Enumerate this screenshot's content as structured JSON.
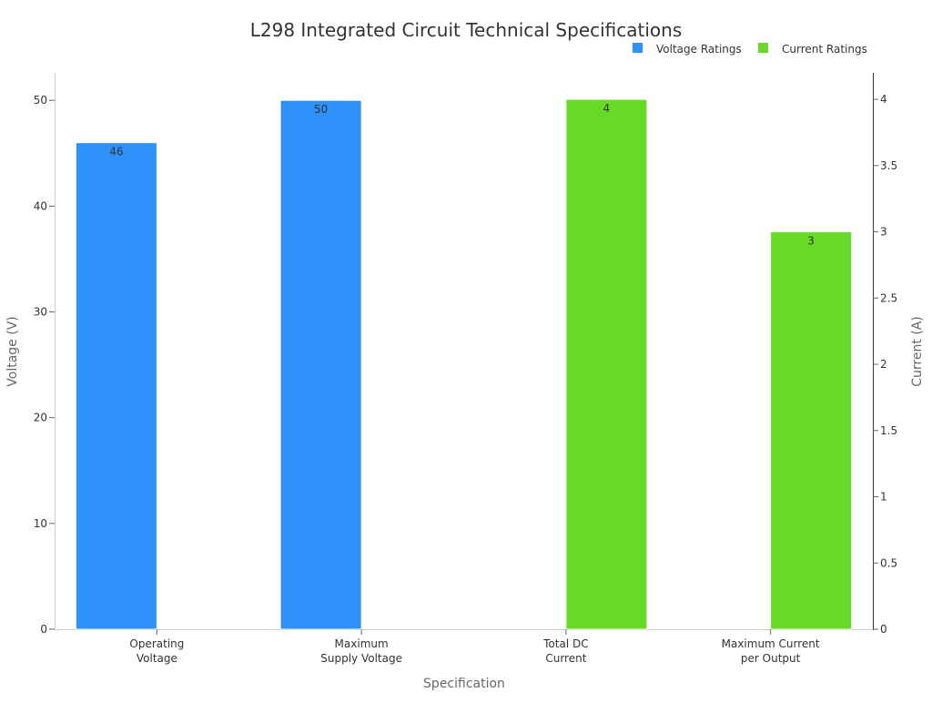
{
  "chart_data": {
    "type": "bar",
    "title": "L298 Integrated Circuit Technical Specifications",
    "xlabel": "Specification",
    "ylabel_left": "Voltage (V)",
    "ylabel_right": "Current (A)",
    "categories": [
      [
        "Operating",
        "Voltage"
      ],
      [
        "Maximum",
        "Supply Voltage"
      ],
      [
        "Total DC",
        "Current"
      ],
      [
        "Maximum Current",
        "per Output"
      ]
    ],
    "series": [
      {
        "name": "Voltage Ratings",
        "axis": "left",
        "color": "#2e91f9",
        "values": [
          46,
          50,
          null,
          null
        ]
      },
      {
        "name": "Current Ratings",
        "axis": "right",
        "color": "#66da26",
        "values": [
          null,
          null,
          4,
          3
        ]
      }
    ],
    "ylim_left": [
      0,
      52.6
    ],
    "ylim_right": [
      0,
      4.2
    ],
    "yticks_left": [
      0,
      10,
      20,
      30,
      40,
      50
    ],
    "yticks_right": [
      0,
      0.5,
      1,
      1.5,
      2,
      2.5,
      3,
      3.5,
      4
    ],
    "legend_position": "top-right",
    "grid": false
  }
}
